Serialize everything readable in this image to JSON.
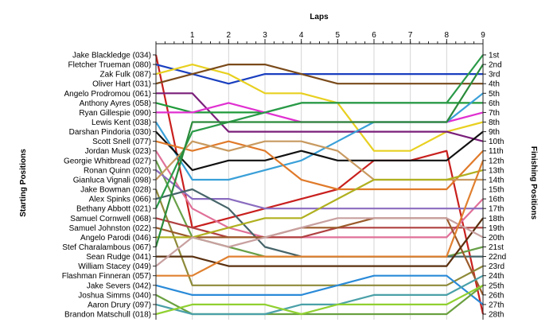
{
  "chart_data": {
    "type": "line",
    "title": "",
    "xlabel": "Laps",
    "ylabel_left": "Starting Positions",
    "ylabel_right": "Finishing Positions",
    "x": [
      0,
      1,
      2,
      3,
      4,
      5,
      6,
      7,
      8,
      9
    ],
    "x_tick_labels": [
      "1",
      "2",
      "3",
      "4",
      "5",
      "6",
      "7",
      "8",
      "9"
    ],
    "finishing_labels": [
      "1st",
      "2nd",
      "3rd",
      "4th",
      "5th",
      "6th",
      "7th",
      "8th",
      "9th",
      "10th",
      "11th",
      "12th",
      "13th",
      "14th",
      "15th",
      "16th",
      "17th",
      "18th",
      "19th",
      "20th",
      "21st",
      "22nd",
      "23rd",
      "24th",
      "25th",
      "26th",
      "27th",
      "28th"
    ],
    "ylim": [
      1,
      28
    ],
    "y_inverted": true,
    "grid": "vertical",
    "legend": "none",
    "series": [
      {
        "name": "Jake Blackledge (034)",
        "color": "#c8201e",
        "values": [
          1,
          19,
          18,
          17,
          16,
          15,
          12,
          12,
          11,
          28
        ]
      },
      {
        "name": "Fletcher Trueman (080)",
        "color": "#1a3fbf",
        "values": [
          2,
          3,
          4,
          3,
          3,
          3,
          3,
          3,
          3,
          3
        ]
      },
      {
        "name": "Zak Fulk (087)",
        "color": "#e8d020",
        "values": [
          3,
          2,
          3,
          5,
          5,
          6,
          11,
          11,
          9,
          8
        ]
      },
      {
        "name": "Oliver Hart (031)",
        "color": "#7a4a1a",
        "values": [
          4,
          3,
          2,
          2,
          3,
          4,
          4,
          4,
          4,
          4
        ]
      },
      {
        "name": "Angelo Prodromou (061)",
        "color": "#7a1f7a",
        "values": [
          5,
          5,
          9,
          9,
          9,
          9,
          9,
          9,
          9,
          10
        ]
      },
      {
        "name": "Anthony Ayres (058)",
        "color": "#1f9a3a",
        "values": [
          6,
          7,
          7,
          7,
          6,
          6,
          6,
          6,
          6,
          6
        ]
      },
      {
        "name": "Ryan Gillespie (090)",
        "color": "#e030d0",
        "values": [
          7,
          7,
          6,
          7,
          8,
          8,
          8,
          8,
          8,
          7
        ]
      },
      {
        "name": "Lewis Kent (038)",
        "color": "#3aa0d8",
        "values": [
          8,
          14,
          14,
          13,
          12,
          10,
          8,
          8,
          8,
          5
        ]
      },
      {
        "name": "Darshan Pindoria (030)",
        "color": "#111111",
        "values": [
          9,
          13,
          12,
          12,
          11,
          12,
          12,
          12,
          12,
          9
        ]
      },
      {
        "name": "Scott Snell (077)",
        "color": "#e07a2a",
        "values": [
          10,
          11,
          10,
          11,
          14,
          15,
          15,
          15,
          15,
          11
        ]
      },
      {
        "name": "Jordan Musk (023)",
        "color": "#e07098",
        "values": [
          11,
          17,
          19,
          20,
          20,
          20,
          20,
          20,
          20,
          16
        ]
      },
      {
        "name": "Georgie Whitbread (027)",
        "color": "#68a048",
        "values": [
          12,
          20,
          21,
          22,
          22,
          22,
          22,
          22,
          22,
          21
        ]
      },
      {
        "name": "Ronan Quinn (020)",
        "color": "#8a6cbf",
        "values": [
          13,
          16,
          16,
          17,
          17,
          17,
          17,
          17,
          17,
          17
        ]
      },
      {
        "name": "Gianluca Vignali (098)",
        "color": "#c89a60",
        "values": [
          14,
          10,
          11,
          10,
          10,
          11,
          14,
          14,
          14,
          14
        ]
      },
      {
        "name": "Jake Bowman (028)",
        "color": "#8e8a3a",
        "values": [
          15,
          25,
          25,
          25,
          25,
          25,
          25,
          25,
          25,
          23
        ]
      },
      {
        "name": "Alex Spinks (066)",
        "color": "#46656a",
        "values": [
          16,
          15,
          17,
          21,
          22,
          22,
          22,
          22,
          22,
          22
        ]
      },
      {
        "name": "Bethany Abbott (021)",
        "color": "#2a9a48",
        "values": [
          17,
          9,
          8,
          7,
          6,
          6,
          6,
          6,
          6,
          1
        ]
      },
      {
        "name": "Samuel Cornwell (068)",
        "color": "#b04040",
        "values": [
          18,
          19,
          20,
          20,
          20,
          19,
          19,
          19,
          19,
          19
        ]
      },
      {
        "name": "Samuel Johnston (022)",
        "color": "#9a5a2a",
        "values": [
          19,
          20,
          20,
          20,
          19,
          19,
          18,
          18,
          18,
          26
        ]
      },
      {
        "name": "Angelo Parodi (046)",
        "color": "#b0b020",
        "values": [
          20,
          20,
          19,
          18,
          18,
          16,
          14,
          14,
          14,
          13
        ]
      },
      {
        "name": "Stef Charalambous (067)",
        "color": "#2a8a3a",
        "values": [
          21,
          8,
          8,
          8,
          8,
          8,
          8,
          8,
          8,
          2
        ]
      },
      {
        "name": "Sean Rudge (041)",
        "color": "#5a3010",
        "values": [
          22,
          22,
          23,
          23,
          23,
          23,
          23,
          23,
          23,
          18
        ]
      },
      {
        "name": "William Stacey (049)",
        "color": "#c8a0a0",
        "values": [
          23,
          20,
          21,
          20,
          19,
          18,
          18,
          18,
          18,
          20
        ]
      },
      {
        "name": "Flashman Finneran (057)",
        "color": "#e08030",
        "values": [
          24,
          24,
          22,
          22,
          22,
          22,
          22,
          22,
          22,
          12
        ]
      },
      {
        "name": "Jake Severs (042)",
        "color": "#2a8ad8",
        "values": [
          25,
          26,
          26,
          26,
          26,
          25,
          24,
          24,
          24,
          27
        ]
      },
      {
        "name": "Joshua Simms (040)",
        "color": "#6aa040",
        "values": [
          26,
          28,
          28,
          28,
          28,
          28,
          28,
          28,
          28,
          25
        ]
      },
      {
        "name": "Aaron Drury (097)",
        "color": "#4aa0a8",
        "values": [
          27,
          28,
          28,
          28,
          27,
          27,
          26,
          26,
          26,
          24
        ]
      },
      {
        "name": "Brandon Matschull (018)",
        "color": "#90d030",
        "values": [
          28,
          27,
          27,
          27,
          28,
          27,
          27,
          27,
          27,
          25
        ]
      }
    ]
  }
}
